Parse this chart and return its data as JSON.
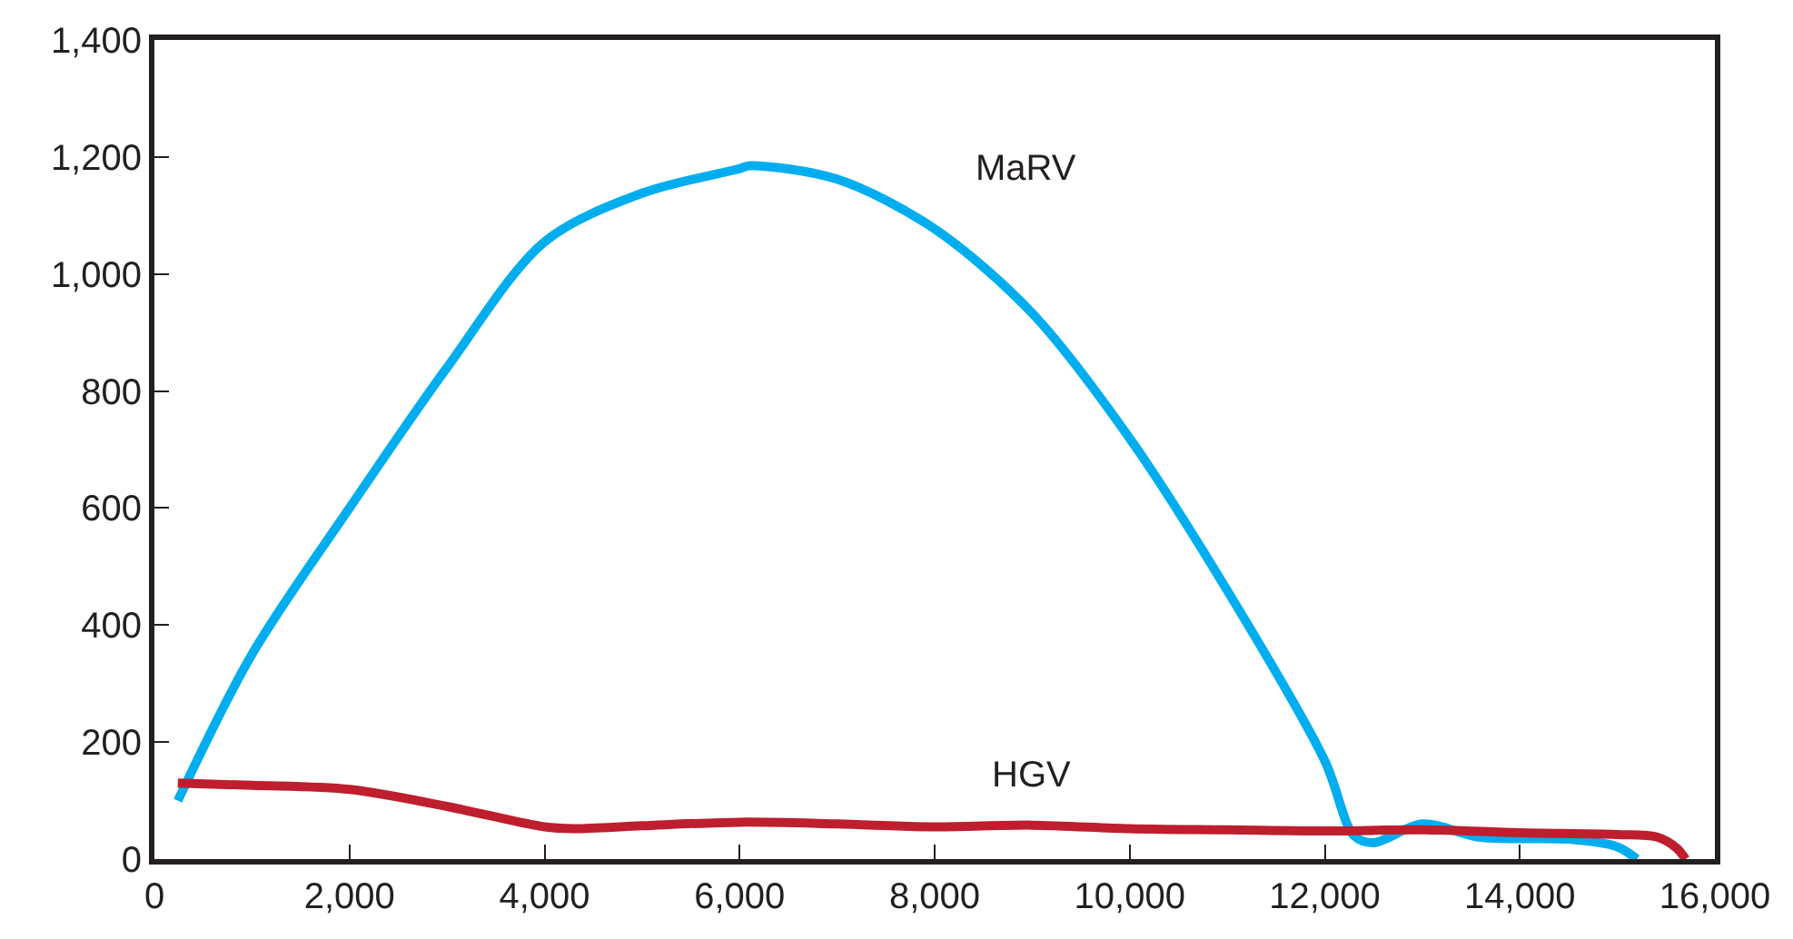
{
  "chart_data": {
    "type": "line",
    "xlim": [
      0,
      16000
    ],
    "ylim": [
      0,
      1400
    ],
    "xticks": [
      {
        "value": 0,
        "label": "0"
      },
      {
        "value": 2000,
        "label": "2,000"
      },
      {
        "value": 4000,
        "label": "4,000"
      },
      {
        "value": 6000,
        "label": "6,000"
      },
      {
        "value": 8000,
        "label": "8,000"
      },
      {
        "value": 10000,
        "label": "10,000"
      },
      {
        "value": 12000,
        "label": "12,000"
      },
      {
        "value": 14000,
        "label": "14,000"
      },
      {
        "value": 16000,
        "label": "16,000"
      }
    ],
    "yticks": [
      0,
      200,
      400,
      600,
      800,
      {
        "value": 1000,
        "label": "1,000"
      },
      {
        "value": 1200,
        "label": "1,200"
      },
      {
        "value": 1400,
        "label": "1,400"
      }
    ],
    "legend": false,
    "marker": "none",
    "line_style": "solid",
    "series": [
      {
        "name": "MaRV",
        "color": "#00aeef",
        "x": [
          240,
          1000,
          2000,
          3000,
          4000,
          5000,
          6000,
          6100,
          7000,
          8000,
          9000,
          10000,
          11000,
          12000,
          12300,
          12500,
          13000,
          13600,
          14500,
          15000,
          15200
        ],
        "values": [
          100,
          350,
          600,
          840,
          1055,
          1138,
          1180,
          1185,
          1162,
          1077,
          933,
          719,
          459,
          168,
          40,
          28,
          60,
          37,
          34,
          21,
          0
        ]
      },
      {
        "name": "HGV",
        "color": "#be1e2d",
        "x": [
          240,
          1000,
          2000,
          3000,
          4000,
          4300,
          5000,
          6000,
          7000,
          8000,
          9000,
          10000,
          11000,
          12000,
          13000,
          14000,
          15000,
          15400,
          15600,
          15700
        ],
        "values": [
          130,
          126,
          119,
          90,
          55,
          52,
          57,
          63,
          60,
          55,
          58,
          52,
          50,
          48,
          50,
          45,
          42,
          38,
          20,
          0
        ]
      }
    ]
  }
}
